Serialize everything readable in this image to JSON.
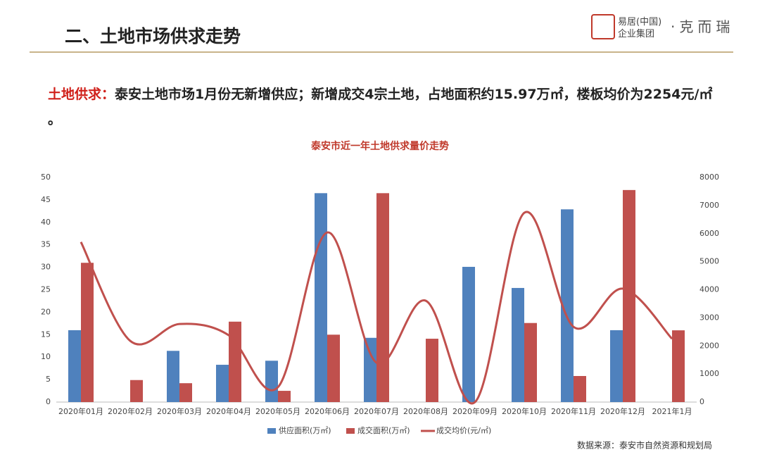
{
  "header": {
    "title": "二、土地市场供求走势",
    "logo": [
      "易居(中国)",
      "企业集团",
      "·克而瑞"
    ]
  },
  "summary": {
    "lead": "土地供求：",
    "text": "泰安土地市场1月份无新增供应；新增成交4宗土地，占地面积约15.97万㎡，楼板均价为2254元/㎡ 。"
  },
  "source": "数据来源：泰安市自然资源和规划局",
  "chart_data": {
    "type": "bar",
    "title": "泰安市近一年土地供求量价走势",
    "categories": [
      "2020年01月",
      "2020年02月",
      "2020年03月",
      "2020年04月",
      "2020年05月",
      "2020年06月",
      "2020年07月",
      "2020年08月",
      "2020年09月",
      "2020年10月",
      "2020年11月",
      "2020年12月",
      "2021年1月"
    ],
    "series": [
      {
        "name": "供应面积(万㎡)",
        "type": "bar",
        "color": "#4f81bd",
        "values": [
          16.0,
          0,
          11.4,
          8.3,
          9.2,
          46.5,
          14.3,
          0,
          30.1,
          25.4,
          42.9,
          16.0,
          0
        ]
      },
      {
        "name": "成交面积(万㎡)",
        "type": "bar",
        "color": "#c0504d",
        "values": [
          31.0,
          4.9,
          4.2,
          17.9,
          2.5,
          15.0,
          46.5,
          14.1,
          0,
          17.6,
          5.8,
          47.2,
          15.97
        ]
      },
      {
        "name": "成交均价(元/㎡)",
        "type": "line",
        "axis": "y2",
        "color": "#c0504d",
        "values": [
          5700,
          2180,
          2780,
          2380,
          530,
          6040,
          1400,
          3610,
          0,
          6740,
          2680,
          4040,
          2254
        ]
      }
    ],
    "ylim": [
      0,
      50
    ],
    "yticks": [
      0,
      5,
      10,
      15,
      20,
      25,
      30,
      35,
      40,
      45,
      50
    ],
    "y2lim": [
      0,
      8000
    ],
    "y2ticks": [
      0,
      1000,
      2000,
      3000,
      4000,
      5000,
      6000,
      7000,
      8000
    ],
    "legend": "bottom",
    "grid": false
  }
}
